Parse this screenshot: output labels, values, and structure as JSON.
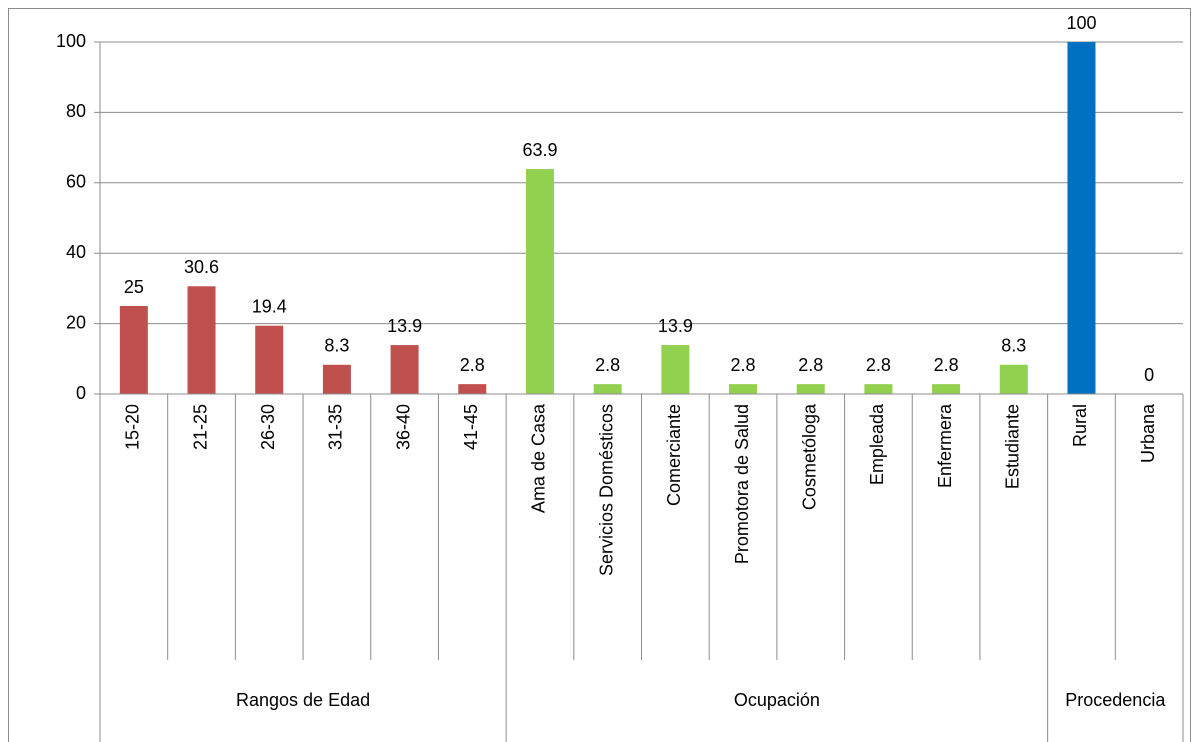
{
  "chart_data": {
    "type": "bar",
    "series": [
      {
        "name": "Rangos de Edad",
        "color": "#c0504d",
        "categories": [
          "15-20",
          "21-25",
          "26-30",
          "31-35",
          "36-40",
          "41-45"
        ],
        "values": [
          25,
          30.6,
          19.4,
          8.3,
          13.9,
          2.8
        ]
      },
      {
        "name": "Ocupación",
        "color": "#92d050",
        "categories": [
          "Ama de Casa",
          "Servicios Domésticos",
          "Comerciante",
          "Promotora de Salud",
          "Cosmetóloga",
          "Empleada",
          "Enfermera",
          "Estudiante"
        ],
        "values": [
          63.9,
          2.8,
          13.9,
          2.8,
          2.8,
          2.8,
          2.8,
          8.3
        ]
      },
      {
        "name": "Procedencia",
        "color": "#0070c0",
        "categories": [
          "Rural",
          "Urbana"
        ],
        "values": [
          100,
          0
        ]
      }
    ],
    "ylim": [
      0,
      100
    ],
    "yticks": [
      0,
      20,
      40,
      60,
      80,
      100
    ],
    "grid": true
  }
}
